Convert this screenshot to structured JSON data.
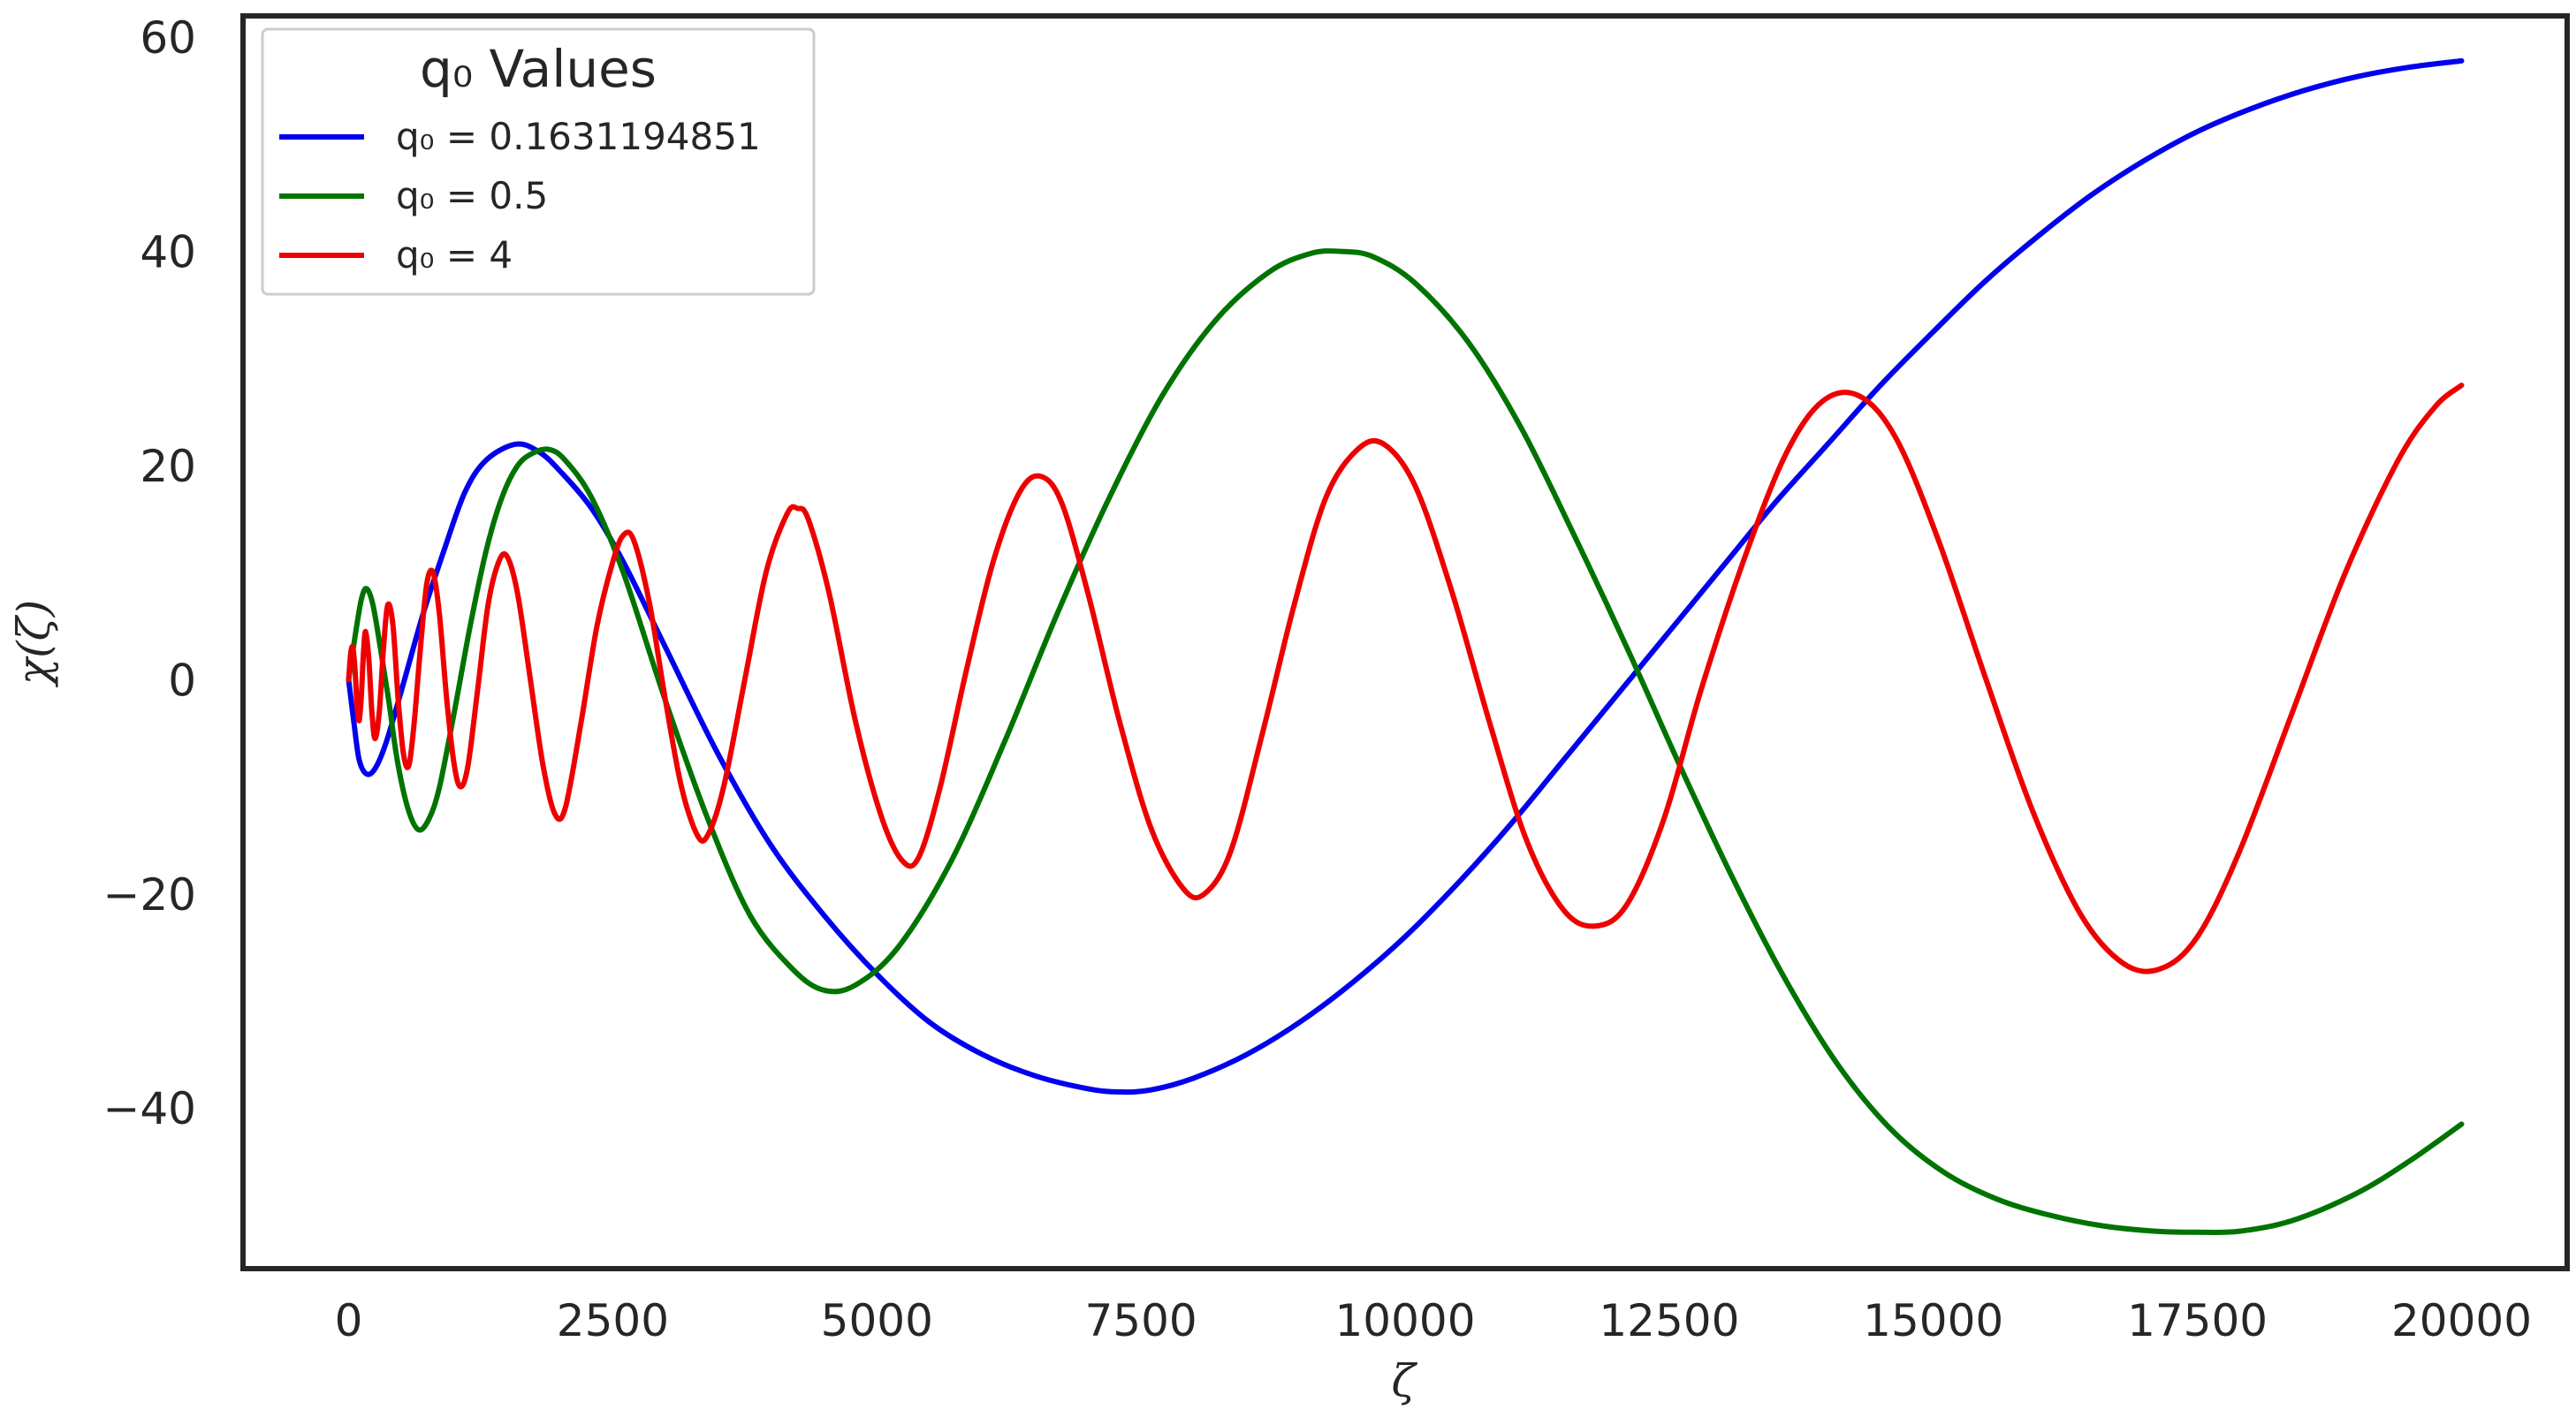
{
  "chart_data": {
    "type": "line",
    "title": "",
    "xlabel": "ζ",
    "ylabel": "χ(ζ)",
    "xlim": [
      -1000,
      21000
    ],
    "ylim": [
      -55,
      62
    ],
    "x_ticks": [
      0,
      2500,
      5000,
      7500,
      10000,
      12500,
      15000,
      17500,
      20000
    ],
    "x_tick_labels": [
      "0",
      "2500",
      "5000",
      "7500",
      "10000",
      "12500",
      "15000",
      "17500",
      "20000"
    ],
    "y_ticks": [
      -40,
      -20,
      0,
      20,
      40,
      60
    ],
    "y_tick_labels": [
      "−40",
      "−20",
      "0",
      "20",
      "40",
      "60"
    ],
    "grid": false,
    "legend": {
      "title": "q₀ Values",
      "placement": "top-left"
    },
    "series": [
      {
        "name": "q₀ = 0.1631194851",
        "color": "#0000ee",
        "points": [
          [
            0,
            0
          ],
          [
            50,
            -4
          ],
          [
            100,
            -7.5
          ],
          [
            170,
            -8.8
          ],
          [
            250,
            -8.3
          ],
          [
            350,
            -6
          ],
          [
            500,
            -1
          ],
          [
            700,
            6
          ],
          [
            900,
            12
          ],
          [
            1100,
            17.5
          ],
          [
            1300,
            20.5
          ],
          [
            1580,
            22
          ],
          [
            1800,
            21.3
          ],
          [
            2000,
            19.5
          ],
          [
            2300,
            16
          ],
          [
            2600,
            11
          ],
          [
            3000,
            3
          ],
          [
            3500,
            -7
          ],
          [
            4000,
            -15.5
          ],
          [
            4500,
            -22
          ],
          [
            5000,
            -27.5
          ],
          [
            5500,
            -32
          ],
          [
            6000,
            -35
          ],
          [
            6500,
            -37
          ],
          [
            7000,
            -38.2
          ],
          [
            7300,
            -38.5
          ],
          [
            7600,
            -38.3
          ],
          [
            8000,
            -37.2
          ],
          [
            8500,
            -35
          ],
          [
            9000,
            -32
          ],
          [
            9500,
            -28.3
          ],
          [
            10000,
            -24
          ],
          [
            10500,
            -19
          ],
          [
            11000,
            -13.5
          ],
          [
            11500,
            -7.5
          ],
          [
            12000,
            -1.5
          ],
          [
            12500,
            4.5
          ],
          [
            13000,
            10.5
          ],
          [
            13500,
            16.5
          ],
          [
            14000,
            22
          ],
          [
            14500,
            27.5
          ],
          [
            15000,
            32.5
          ],
          [
            15500,
            37.3
          ],
          [
            16000,
            41.5
          ],
          [
            16500,
            45.3
          ],
          [
            17000,
            48.5
          ],
          [
            17500,
            51.2
          ],
          [
            18000,
            53.3
          ],
          [
            18500,
            55
          ],
          [
            19000,
            56.3
          ],
          [
            19500,
            57.2
          ],
          [
            20000,
            57.8
          ]
        ]
      },
      {
        "name": "q₀ = 0.5",
        "color": "#007300",
        "points": [
          [
            0,
            0
          ],
          [
            60,
            4
          ],
          [
            120,
            7.5
          ],
          [
            170,
            8.5
          ],
          [
            230,
            7
          ],
          [
            300,
            3
          ],
          [
            380,
            -2
          ],
          [
            460,
            -7.5
          ],
          [
            560,
            -12
          ],
          [
            660,
            -14
          ],
          [
            760,
            -13
          ],
          [
            860,
            -10
          ],
          [
            1000,
            -3
          ],
          [
            1150,
            5
          ],
          [
            1300,
            12
          ],
          [
            1450,
            17
          ],
          [
            1600,
            20
          ],
          [
            1750,
            21.2
          ],
          [
            1900,
            21.5
          ],
          [
            2050,
            20.5
          ],
          [
            2300,
            17
          ],
          [
            2600,
            10
          ],
          [
            3000,
            -2
          ],
          [
            3400,
            -13
          ],
          [
            3800,
            -22
          ],
          [
            4200,
            -27
          ],
          [
            4500,
            -29
          ],
          [
            4800,
            -28.5
          ],
          [
            5200,
            -25
          ],
          [
            5700,
            -17
          ],
          [
            6200,
            -6
          ],
          [
            6700,
            6
          ],
          [
            7200,
            17
          ],
          [
            7700,
            26.5
          ],
          [
            8200,
            33.5
          ],
          [
            8700,
            38
          ],
          [
            9100,
            39.8
          ],
          [
            9400,
            40
          ],
          [
            9700,
            39.5
          ],
          [
            10100,
            37
          ],
          [
            10600,
            31.5
          ],
          [
            11100,
            23.5
          ],
          [
            11600,
            13.5
          ],
          [
            12100,
            3
          ],
          [
            12600,
            -8
          ],
          [
            13100,
            -18.5
          ],
          [
            13600,
            -28
          ],
          [
            14100,
            -36
          ],
          [
            14600,
            -42
          ],
          [
            15100,
            -46
          ],
          [
            15600,
            -48.5
          ],
          [
            16100,
            -50
          ],
          [
            16600,
            -51
          ],
          [
            17100,
            -51.5
          ],
          [
            17500,
            -51.6
          ],
          [
            17900,
            -51.5
          ],
          [
            18400,
            -50.5
          ],
          [
            19000,
            -48
          ],
          [
            19500,
            -45
          ],
          [
            20000,
            -41.5
          ]
        ]
      },
      {
        "name": "q₀ = 4",
        "color": "#ee0000",
        "points": [
          [
            0,
            0
          ],
          [
            20,
            2.5
          ],
          [
            40,
            3
          ],
          [
            60,
            1
          ],
          [
            80,
            -2.5
          ],
          [
            100,
            -3.8
          ],
          [
            120,
            -1.5
          ],
          [
            140,
            2.5
          ],
          [
            160,
            4.5
          ],
          [
            190,
            2
          ],
          [
            220,
            -3
          ],
          [
            250,
            -5.5
          ],
          [
            290,
            -3
          ],
          [
            330,
            3
          ],
          [
            370,
            7
          ],
          [
            420,
            5
          ],
          [
            470,
            -2
          ],
          [
            520,
            -7
          ],
          [
            570,
            -8
          ],
          [
            620,
            -4
          ],
          [
            680,
            3
          ],
          [
            740,
            9
          ],
          [
            800,
            10
          ],
          [
            860,
            6
          ],
          [
            930,
            -2
          ],
          [
            1000,
            -8
          ],
          [
            1060,
            -10
          ],
          [
            1130,
            -8
          ],
          [
            1220,
            -1
          ],
          [
            1320,
            7
          ],
          [
            1420,
            11
          ],
          [
            1500,
            11.5
          ],
          [
            1600,
            8
          ],
          [
            1720,
            0
          ],
          [
            1840,
            -8
          ],
          [
            1950,
            -12.5
          ],
          [
            2050,
            -12
          ],
          [
            2200,
            -4
          ],
          [
            2350,
            5
          ],
          [
            2500,
            11
          ],
          [
            2600,
            13.5
          ],
          [
            2700,
            13
          ],
          [
            2850,
            7
          ],
          [
            3000,
            -2
          ],
          [
            3150,
            -10
          ],
          [
            3300,
            -14.5
          ],
          [
            3400,
            -14.5
          ],
          [
            3550,
            -10
          ],
          [
            3750,
            0
          ],
          [
            3950,
            10
          ],
          [
            4150,
            15.5
          ],
          [
            4250,
            16
          ],
          [
            4350,
            15
          ],
          [
            4550,
            8
          ],
          [
            4800,
            -4
          ],
          [
            5050,
            -13
          ],
          [
            5250,
            -17
          ],
          [
            5400,
            -16.5
          ],
          [
            5600,
            -10
          ],
          [
            5850,
            1
          ],
          [
            6100,
            11
          ],
          [
            6350,
            17.5
          ],
          [
            6550,
            19
          ],
          [
            6750,
            16.5
          ],
          [
            7000,
            8
          ],
          [
            7300,
            -4
          ],
          [
            7600,
            -14
          ],
          [
            7900,
            -19.5
          ],
          [
            8100,
            -20
          ],
          [
            8350,
            -16
          ],
          [
            8650,
            -5
          ],
          [
            8950,
            7
          ],
          [
            9250,
            17
          ],
          [
            9550,
            21.5
          ],
          [
            9800,
            22
          ],
          [
            10100,
            18
          ],
          [
            10450,
            8
          ],
          [
            10800,
            -4
          ],
          [
            11150,
            -15
          ],
          [
            11500,
            -21.5
          ],
          [
            11800,
            -23
          ],
          [
            12100,
            -21
          ],
          [
            12450,
            -13
          ],
          [
            12800,
            -1
          ],
          [
            13200,
            11
          ],
          [
            13600,
            21
          ],
          [
            13950,
            26
          ],
          [
            14300,
            26.5
          ],
          [
            14650,
            22.5
          ],
          [
            15050,
            13
          ],
          [
            15500,
            0
          ],
          [
            15950,
            -12.5
          ],
          [
            16400,
            -22
          ],
          [
            16800,
            -26.5
          ],
          [
            17150,
            -27
          ],
          [
            17500,
            -24
          ],
          [
            17900,
            -16
          ],
          [
            18400,
            -3
          ],
          [
            18900,
            10
          ],
          [
            19400,
            20.5
          ],
          [
            19750,
            25.5
          ],
          [
            20000,
            27.5
          ]
        ]
      }
    ]
  }
}
